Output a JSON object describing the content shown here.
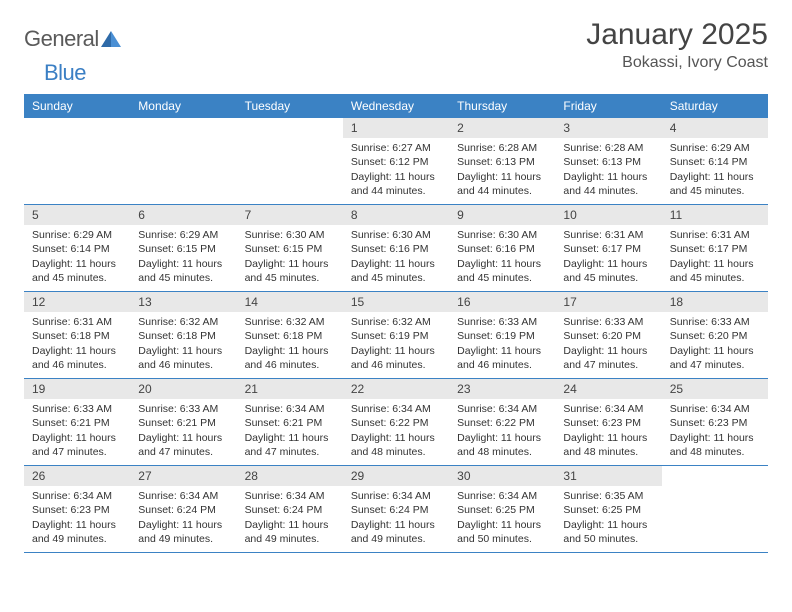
{
  "brand": {
    "name_prefix": "General",
    "name_suffix": "Blue"
  },
  "title": "January 2025",
  "location": "Bokassi, Ivory Coast",
  "colors": {
    "header_bar": "#3b82c4",
    "daynum_bg": "#e8e8e8",
    "text": "#333333",
    "divider": "#3b82c4",
    "logo_gray": "#5a5a5a",
    "logo_blue": "#3b7fc4"
  },
  "typography": {
    "month_title_size": 30,
    "location_size": 16,
    "day_header_size": 12,
    "cell_text_size": 10.5
  },
  "day_names": [
    "Sunday",
    "Monday",
    "Tuesday",
    "Wednesday",
    "Thursday",
    "Friday",
    "Saturday"
  ],
  "weeks": [
    [
      null,
      null,
      null,
      {
        "n": "1",
        "sunrise": "Sunrise: 6:27 AM",
        "sunset": "Sunset: 6:12 PM",
        "daylight": "Daylight: 11 hours and 44 minutes."
      },
      {
        "n": "2",
        "sunrise": "Sunrise: 6:28 AM",
        "sunset": "Sunset: 6:13 PM",
        "daylight": "Daylight: 11 hours and 44 minutes."
      },
      {
        "n": "3",
        "sunrise": "Sunrise: 6:28 AM",
        "sunset": "Sunset: 6:13 PM",
        "daylight": "Daylight: 11 hours and 44 minutes."
      },
      {
        "n": "4",
        "sunrise": "Sunrise: 6:29 AM",
        "sunset": "Sunset: 6:14 PM",
        "daylight": "Daylight: 11 hours and 45 minutes."
      }
    ],
    [
      {
        "n": "5",
        "sunrise": "Sunrise: 6:29 AM",
        "sunset": "Sunset: 6:14 PM",
        "daylight": "Daylight: 11 hours and 45 minutes."
      },
      {
        "n": "6",
        "sunrise": "Sunrise: 6:29 AM",
        "sunset": "Sunset: 6:15 PM",
        "daylight": "Daylight: 11 hours and 45 minutes."
      },
      {
        "n": "7",
        "sunrise": "Sunrise: 6:30 AM",
        "sunset": "Sunset: 6:15 PM",
        "daylight": "Daylight: 11 hours and 45 minutes."
      },
      {
        "n": "8",
        "sunrise": "Sunrise: 6:30 AM",
        "sunset": "Sunset: 6:16 PM",
        "daylight": "Daylight: 11 hours and 45 minutes."
      },
      {
        "n": "9",
        "sunrise": "Sunrise: 6:30 AM",
        "sunset": "Sunset: 6:16 PM",
        "daylight": "Daylight: 11 hours and 45 minutes."
      },
      {
        "n": "10",
        "sunrise": "Sunrise: 6:31 AM",
        "sunset": "Sunset: 6:17 PM",
        "daylight": "Daylight: 11 hours and 45 minutes."
      },
      {
        "n": "11",
        "sunrise": "Sunrise: 6:31 AM",
        "sunset": "Sunset: 6:17 PM",
        "daylight": "Daylight: 11 hours and 45 minutes."
      }
    ],
    [
      {
        "n": "12",
        "sunrise": "Sunrise: 6:31 AM",
        "sunset": "Sunset: 6:18 PM",
        "daylight": "Daylight: 11 hours and 46 minutes."
      },
      {
        "n": "13",
        "sunrise": "Sunrise: 6:32 AM",
        "sunset": "Sunset: 6:18 PM",
        "daylight": "Daylight: 11 hours and 46 minutes."
      },
      {
        "n": "14",
        "sunrise": "Sunrise: 6:32 AM",
        "sunset": "Sunset: 6:18 PM",
        "daylight": "Daylight: 11 hours and 46 minutes."
      },
      {
        "n": "15",
        "sunrise": "Sunrise: 6:32 AM",
        "sunset": "Sunset: 6:19 PM",
        "daylight": "Daylight: 11 hours and 46 minutes."
      },
      {
        "n": "16",
        "sunrise": "Sunrise: 6:33 AM",
        "sunset": "Sunset: 6:19 PM",
        "daylight": "Daylight: 11 hours and 46 minutes."
      },
      {
        "n": "17",
        "sunrise": "Sunrise: 6:33 AM",
        "sunset": "Sunset: 6:20 PM",
        "daylight": "Daylight: 11 hours and 47 minutes."
      },
      {
        "n": "18",
        "sunrise": "Sunrise: 6:33 AM",
        "sunset": "Sunset: 6:20 PM",
        "daylight": "Daylight: 11 hours and 47 minutes."
      }
    ],
    [
      {
        "n": "19",
        "sunrise": "Sunrise: 6:33 AM",
        "sunset": "Sunset: 6:21 PM",
        "daylight": "Daylight: 11 hours and 47 minutes."
      },
      {
        "n": "20",
        "sunrise": "Sunrise: 6:33 AM",
        "sunset": "Sunset: 6:21 PM",
        "daylight": "Daylight: 11 hours and 47 minutes."
      },
      {
        "n": "21",
        "sunrise": "Sunrise: 6:34 AM",
        "sunset": "Sunset: 6:21 PM",
        "daylight": "Daylight: 11 hours and 47 minutes."
      },
      {
        "n": "22",
        "sunrise": "Sunrise: 6:34 AM",
        "sunset": "Sunset: 6:22 PM",
        "daylight": "Daylight: 11 hours and 48 minutes."
      },
      {
        "n": "23",
        "sunrise": "Sunrise: 6:34 AM",
        "sunset": "Sunset: 6:22 PM",
        "daylight": "Daylight: 11 hours and 48 minutes."
      },
      {
        "n": "24",
        "sunrise": "Sunrise: 6:34 AM",
        "sunset": "Sunset: 6:23 PM",
        "daylight": "Daylight: 11 hours and 48 minutes."
      },
      {
        "n": "25",
        "sunrise": "Sunrise: 6:34 AM",
        "sunset": "Sunset: 6:23 PM",
        "daylight": "Daylight: 11 hours and 48 minutes."
      }
    ],
    [
      {
        "n": "26",
        "sunrise": "Sunrise: 6:34 AM",
        "sunset": "Sunset: 6:23 PM",
        "daylight": "Daylight: 11 hours and 49 minutes."
      },
      {
        "n": "27",
        "sunrise": "Sunrise: 6:34 AM",
        "sunset": "Sunset: 6:24 PM",
        "daylight": "Daylight: 11 hours and 49 minutes."
      },
      {
        "n": "28",
        "sunrise": "Sunrise: 6:34 AM",
        "sunset": "Sunset: 6:24 PM",
        "daylight": "Daylight: 11 hours and 49 minutes."
      },
      {
        "n": "29",
        "sunrise": "Sunrise: 6:34 AM",
        "sunset": "Sunset: 6:24 PM",
        "daylight": "Daylight: 11 hours and 49 minutes."
      },
      {
        "n": "30",
        "sunrise": "Sunrise: 6:34 AM",
        "sunset": "Sunset: 6:25 PM",
        "daylight": "Daylight: 11 hours and 50 minutes."
      },
      {
        "n": "31",
        "sunrise": "Sunrise: 6:35 AM",
        "sunset": "Sunset: 6:25 PM",
        "daylight": "Daylight: 11 hours and 50 minutes."
      },
      null
    ]
  ]
}
